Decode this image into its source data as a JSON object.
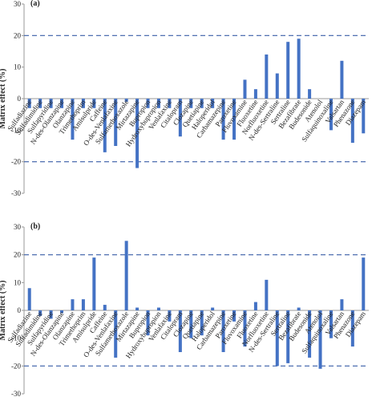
{
  "chart_data": [
    {
      "type": "bar",
      "title": "(a)",
      "ylabel": "Matrix effect (%)",
      "color": "#4472c4",
      "categories": [
        "Sulfadiazine",
        "Sulfadimidine",
        "Sulfapyridine",
        "N-des-Olanzapine",
        "Olanzapine",
        "Trimethoprim",
        "Amisulpride",
        "Caffeine",
        "O-des-Venlafaxine",
        "Sulfamethoxazole",
        "Mirtazapine",
        "Bupropion",
        "Hydroxybupropion",
        "Venlafaxine",
        "Citalopram",
        "Clozapine",
        "Quetiapine",
        "Haloperidol",
        "Carbamazepine",
        "Paroxetine",
        "Fluvoxamine",
        "Fluoxetine",
        "Norfluoxetine",
        "N-des-Sertraline",
        "Sertraline",
        "Bezafibrate",
        "Budesonide",
        "Atenolol",
        "Sulfaquinoxaline",
        "Valsartan",
        "Phenazone",
        "Diazepam"
      ],
      "values": [
        -3,
        -3,
        -3,
        -3,
        -13,
        -3,
        -3,
        -17,
        -15,
        -1,
        -22,
        -3,
        -3,
        -3,
        -12,
        -3,
        -3,
        -3,
        -13,
        -13,
        6,
        3,
        14,
        8,
        18,
        19,
        3,
        0,
        -10,
        12,
        -14,
        -11
      ],
      "ylim": [
        -30,
        30
      ],
      "yticks": [
        -30,
        -20,
        -10,
        0,
        10,
        20,
        30
      ],
      "reference_lines": [
        20,
        -20
      ]
    },
    {
      "type": "bar",
      "title": "(b)",
      "ylabel": "Matrix effect (%)",
      "color": "#4472c4",
      "categories": [
        "Sulfadiazine",
        "Sulfadimidine",
        "Sulfapyridine",
        "N-des-Olanzapine",
        "Olanzapine",
        "Trimethoprim",
        "Amisulpride",
        "Caffeine",
        "O-des-Venlafaxine",
        "Sulfamethoxazole",
        "Mirtazapine",
        "Bupropion",
        "Hydroxybupropion",
        "Venlafaxine",
        "Citalopram",
        "Clozapine",
        "Quetiapine",
        "Haloperidol",
        "Carbamazepine",
        "Paroxetine",
        "Fluvoxamine",
        "Fluoxetine",
        "Norfluoxetine",
        "N-des-Sertraline",
        "Sertraline",
        "Bezafibrate",
        "Budesonide",
        "Atenolol",
        "Sulfaquinoxaline",
        "Valsartan",
        "Phenazone",
        "Diazepam"
      ],
      "values": [
        8,
        -2,
        -3,
        -1,
        4,
        4,
        19,
        2,
        -17,
        25,
        1,
        -9,
        1,
        -4,
        -15,
        -10,
        -9,
        1,
        -15,
        -4,
        -13,
        3,
        11,
        -20,
        -19,
        1,
        -17,
        -21,
        -10,
        4,
        -13,
        19
      ],
      "ylim": [
        -30,
        30
      ],
      "yticks": [
        -30,
        -20,
        -10,
        0,
        10,
        20,
        30
      ],
      "reference_lines": [
        20,
        -20
      ]
    }
  ]
}
